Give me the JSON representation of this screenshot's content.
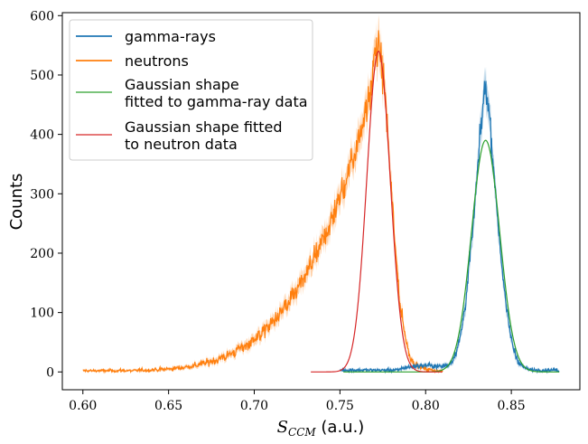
{
  "chart_data": {
    "type": "line",
    "title": "",
    "xlabel_math": "S",
    "xlabel_sub": "CCM",
    "xlabel_unit": " (a.u.)",
    "ylabel": "Counts",
    "xlim": [
      0.588,
      0.89
    ],
    "ylim": [
      -30,
      605
    ],
    "xticks": [
      0.6,
      0.65,
      0.7,
      0.75,
      0.8,
      0.85
    ],
    "xtick_labels": [
      "0.60",
      "0.65",
      "0.70",
      "0.75",
      "0.80",
      "0.85"
    ],
    "yticks": [
      0,
      100,
      200,
      300,
      400,
      500,
      600
    ],
    "ytick_labels": [
      "0",
      "100",
      "200",
      "300",
      "400",
      "500",
      "600"
    ],
    "grid": false,
    "legend_position": "top-left",
    "series": [
      {
        "name": "gamma-rays",
        "color": "#1f77b4",
        "kind": "histogram",
        "x_range": [
          0.75,
          0.878
        ],
        "peak_x": 0.835,
        "peak_y": 470,
        "sigma": 0.0075
      },
      {
        "name": "neutrons",
        "color": "#ff7f0e",
        "kind": "histogram",
        "x_range": [
          0.6,
          0.81
        ],
        "peak_x": 0.772,
        "peak_y": 545
      },
      {
        "name": "Gaussian shape\nfitted to gamma-ray data",
        "label_lines": [
          "Gaussian shape",
          "fitted to gamma-ray data"
        ],
        "color": "#2ca02c",
        "kind": "gaussian",
        "x_range": [
          0.752,
          0.878
        ],
        "mu": 0.835,
        "sigma": 0.0082,
        "amplitude": 390
      },
      {
        "name": "Gaussian shape fitted\nto neutron data",
        "label_lines": [
          "Gaussian shape fitted",
          "to neutron data"
        ],
        "color": "#d62728",
        "kind": "gaussian",
        "x_range": [
          0.733,
          0.81
        ],
        "mu": 0.7725,
        "sigma": 0.0068,
        "amplitude": 540
      }
    ]
  }
}
